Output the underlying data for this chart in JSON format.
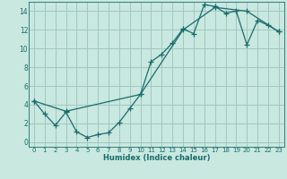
{
  "title": "",
  "xlabel": "Humidex (Indice chaleur)",
  "ylabel": "",
  "bg_color": "#c8e8e0",
  "grid_color": "#a0c8c0",
  "line_color": "#1a6b6b",
  "xlim": [
    -0.5,
    23.5
  ],
  "ylim": [
    -0.5,
    15.0
  ],
  "xticks": [
    0,
    1,
    2,
    3,
    4,
    5,
    6,
    7,
    8,
    9,
    10,
    11,
    12,
    13,
    14,
    15,
    16,
    17,
    18,
    19,
    20,
    21,
    22,
    23
  ],
  "yticks": [
    0,
    2,
    4,
    6,
    8,
    10,
    12,
    14
  ],
  "line1_x": [
    0,
    1,
    2,
    3,
    4,
    5,
    6,
    7,
    8,
    9,
    10,
    11,
    12,
    13,
    14,
    15,
    16,
    17,
    18,
    19,
    20,
    21,
    22,
    23
  ],
  "line1_y": [
    4.4,
    3.0,
    1.8,
    3.2,
    1.1,
    0.5,
    0.8,
    1.0,
    2.1,
    3.6,
    5.1,
    8.6,
    9.4,
    10.6,
    12.1,
    11.6,
    14.7,
    14.5,
    13.8,
    14.0,
    10.4,
    13.0,
    12.5,
    11.8
  ],
  "line2_x": [
    0,
    3,
    10,
    14,
    17,
    20,
    23
  ],
  "line2_y": [
    4.4,
    3.3,
    5.1,
    12.0,
    14.4,
    14.0,
    11.8
  ]
}
